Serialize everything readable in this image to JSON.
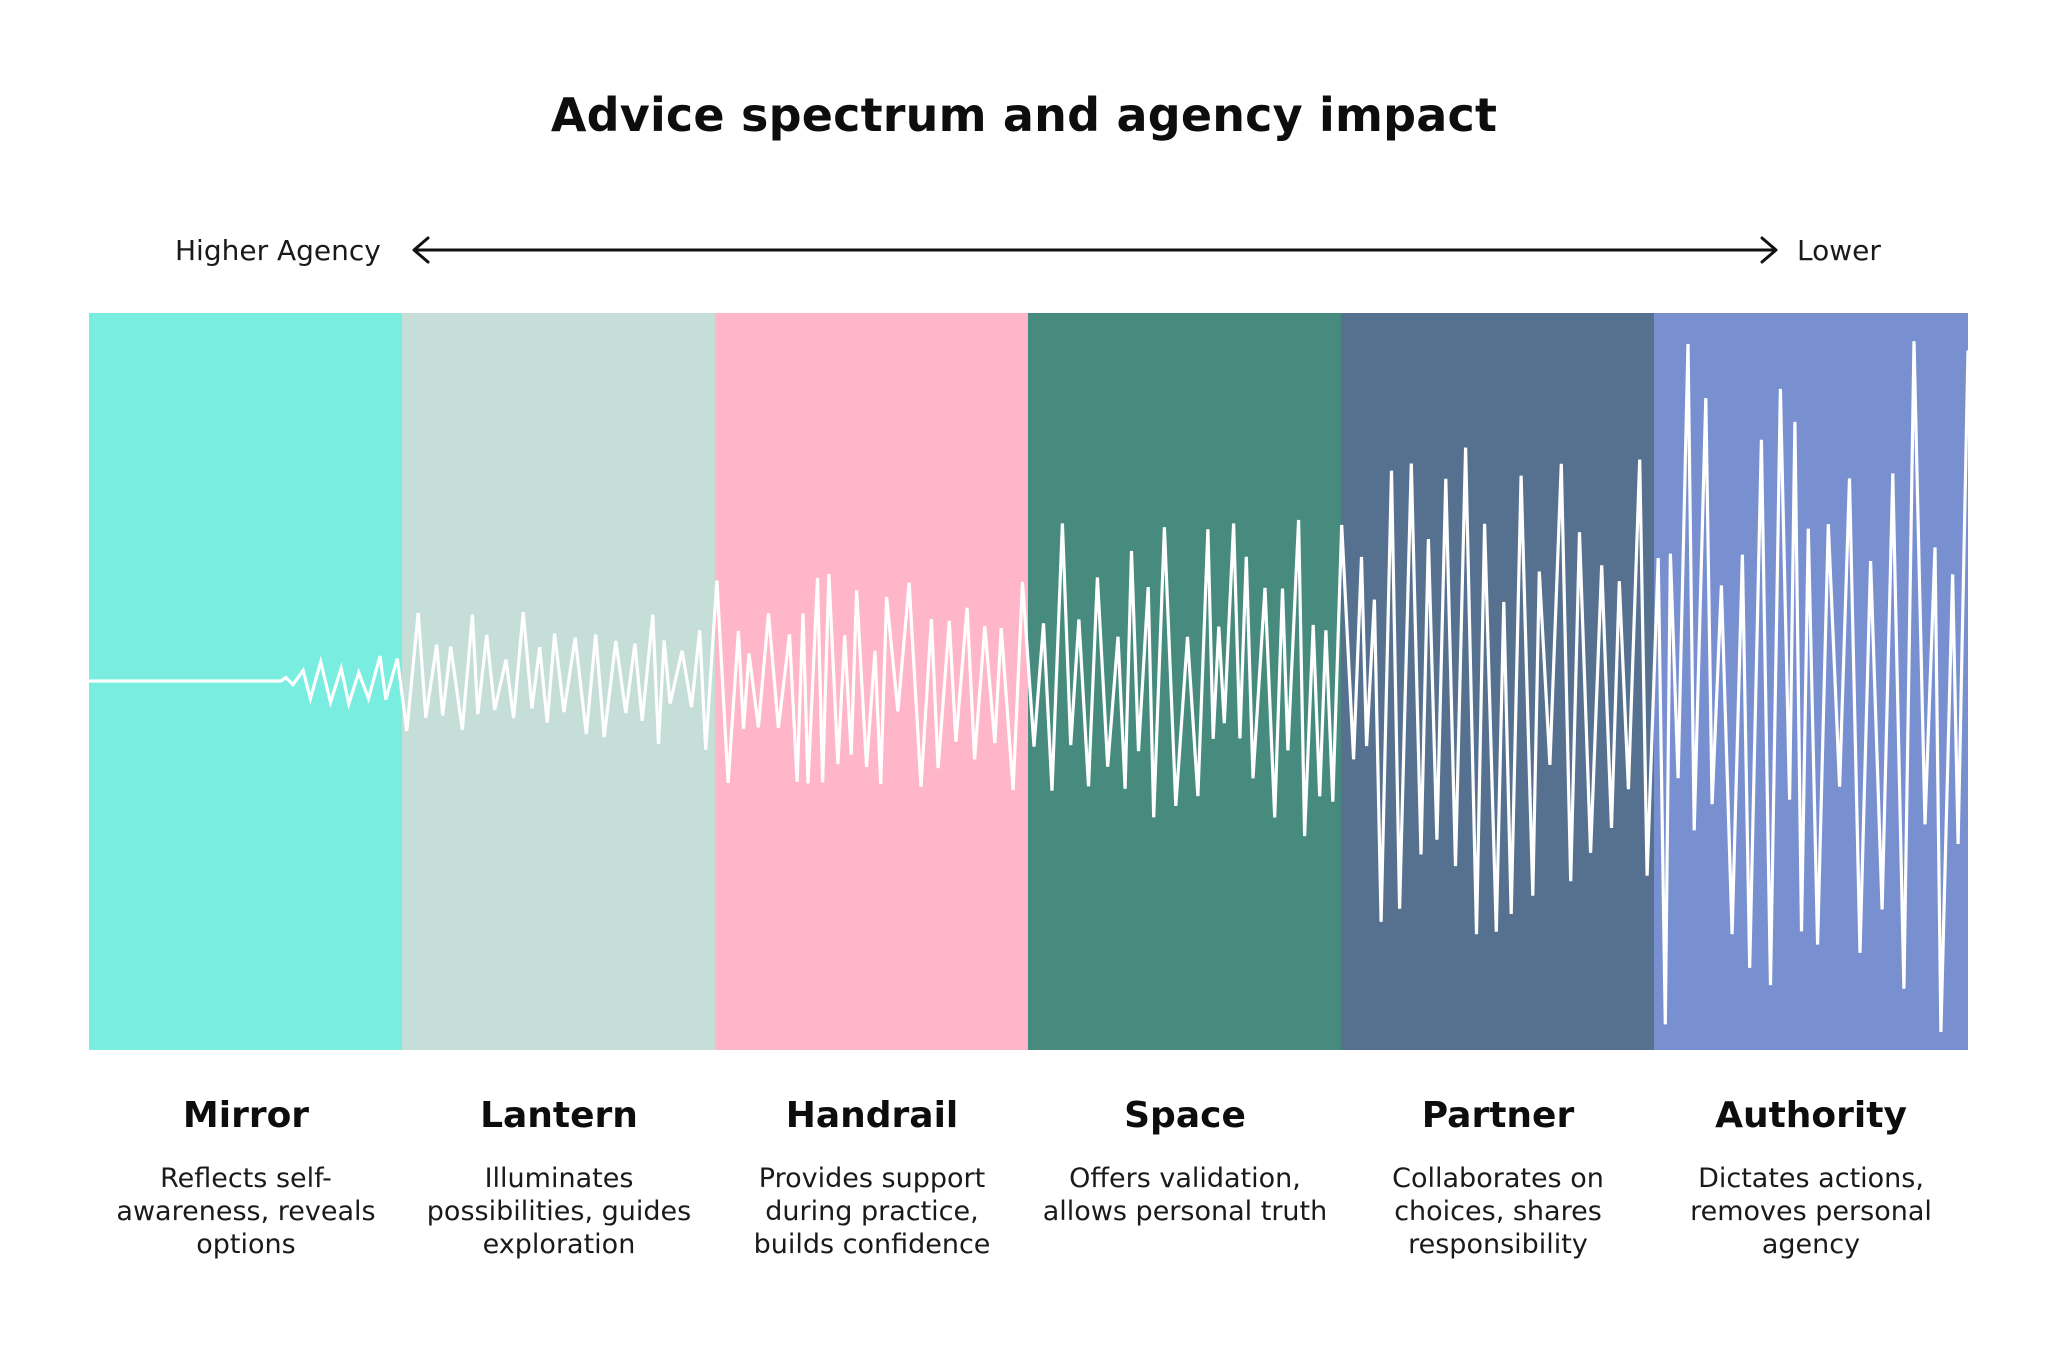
{
  "title": "Advice spectrum and agency impact",
  "axis": {
    "left_label": "Higher Agency",
    "right_label": "Lower"
  },
  "colors": {
    "wave": "#ffffff",
    "arrow": "#111111"
  },
  "spectrum": [
    {
      "name": "Mirror",
      "description": "Reflects self-awareness, reveals options",
      "color": "#79ede0",
      "amplitude": 0.08
    },
    {
      "name": "Lantern",
      "description": "Illuminates possibilities, guides exploration",
      "color": "#c5dfd8",
      "amplitude": 0.2
    },
    {
      "name": "Handrail",
      "description": "Provides support during practice, builds confidence",
      "color": "#ffb6c8",
      "amplitude": 0.3
    },
    {
      "name": "Space",
      "description": "Offers validation, allows personal truth",
      "color": "#468b7e",
      "amplitude": 0.45
    },
    {
      "name": "Partner",
      "description": "Collaborates on choices, shares responsibility",
      "color": "#56718f",
      "amplitude": 0.7
    },
    {
      "name": "Authority",
      "description": "Dictates actions, removes personal agency",
      "color": "#7890d0",
      "amplitude": 1.0
    }
  ]
}
